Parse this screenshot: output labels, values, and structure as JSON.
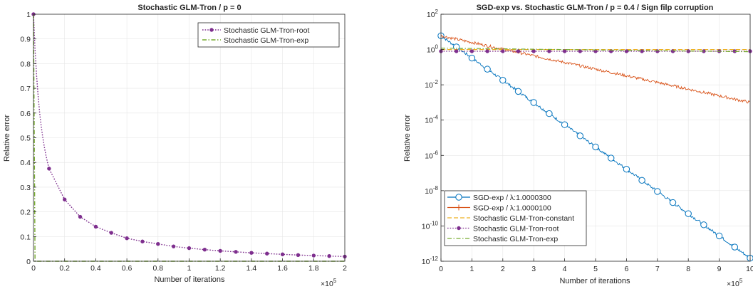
{
  "chart_data": [
    {
      "type": "line",
      "title": "Stochastic GLM-Tron / p = 0",
      "xlabel": "Number of iterations",
      "ylabel": "Relative error",
      "x_exponent_label": "×10",
      "x_exponent": "5",
      "xlim": [
        0,
        2
      ],
      "ylim": [
        0,
        1
      ],
      "xticks": [
        "0",
        "0.2",
        "0.4",
        "0.6",
        "0.8",
        "1",
        "1.2",
        "1.4",
        "1.6",
        "1.8",
        "2"
      ],
      "yticks": [
        "0",
        "0.1",
        "0.2",
        "0.3",
        "0.4",
        "0.5",
        "0.6",
        "0.7",
        "0.8",
        "0.9",
        "1"
      ],
      "grid": true,
      "legend_position": "top-right",
      "series": [
        {
          "name": "Stochastic GLM-Tron-root",
          "color": "#7e2f8e",
          "style": "dotted",
          "marker": "dot",
          "x": [
            0,
            0.1,
            0.2,
            0.3,
            0.4,
            0.5,
            0.6,
            0.7,
            0.8,
            0.9,
            1.0,
            1.1,
            1.2,
            1.3,
            1.4,
            1.5,
            1.6,
            1.7,
            1.8,
            1.9,
            2.0
          ],
          "values": [
            1.0,
            0.375,
            0.25,
            0.18,
            0.14,
            0.115,
            0.093,
            0.08,
            0.07,
            0.06,
            0.053,
            0.047,
            0.042,
            0.038,
            0.034,
            0.031,
            0.028,
            0.025,
            0.023,
            0.021,
            0.019
          ]
        },
        {
          "name": "Stochastic GLM-Tron-exp",
          "color": "#77ac30",
          "style": "dashdot",
          "marker": "none",
          "x": [
            0,
            0.005,
            0.01,
            0.02,
            2.0
          ],
          "values": [
            1.0,
            0.5,
            0.0,
            0.0,
            0.0
          ]
        }
      ]
    },
    {
      "type": "line",
      "title": "SGD-exp vs. Stochastic GLM-Tron / p = 0.4 / Sign filp corruption",
      "xlabel": "Number of iterations",
      "ylabel": "Relative error",
      "x_exponent_label": "×10",
      "x_exponent": "5",
      "xlim": [
        0,
        10
      ],
      "yscale": "log",
      "ylim": [
        1e-12,
        100
      ],
      "xticks": [
        "0",
        "1",
        "2",
        "3",
        "4",
        "5",
        "6",
        "7",
        "8",
        "9",
        "10"
      ],
      "yticks": [
        {
          "base": "10",
          "exp": "-12"
        },
        {
          "base": "10",
          "exp": "-10"
        },
        {
          "base": "10",
          "exp": "-8"
        },
        {
          "base": "10",
          "exp": "-6"
        },
        {
          "base": "10",
          "exp": "-4"
        },
        {
          "base": "10",
          "exp": "-2"
        },
        {
          "base": "10",
          "exp": "0"
        },
        {
          "base": "10",
          "exp": "2"
        }
      ],
      "grid": true,
      "legend_position": "bottom-left",
      "series": [
        {
          "name": "SGD-exp / λ:1.0000300",
          "color": "#0072bd",
          "style": "solid",
          "marker": "circle",
          "x": [
            0,
            10
          ],
          "values": [
            6,
            1.5e-12
          ]
        },
        {
          "name": "SGD-exp / λ:1.0000100",
          "color": "#d95319",
          "style": "solid",
          "marker": "plus",
          "x": [
            0,
            10
          ],
          "values": [
            6,
            0.001
          ]
        },
        {
          "name": "Stochastic GLM-Tron-constant",
          "color": "#edb120",
          "style": "dashed",
          "marker": "none",
          "x": [
            0,
            10
          ],
          "values": [
            1.0,
            1.0
          ]
        },
        {
          "name": "Stochastic GLM-Tron-root",
          "color": "#7e2f8e",
          "style": "dotted",
          "marker": "dot",
          "x": [
            0,
            1,
            2,
            3,
            4,
            5,
            6,
            7,
            8,
            9,
            10
          ],
          "values": [
            0.8,
            0.8,
            0.8,
            0.8,
            0.8,
            0.8,
            0.8,
            0.8,
            0.8,
            0.8,
            0.8
          ]
        },
        {
          "name": "Stochastic GLM-Tron-exp",
          "color": "#77ac30",
          "style": "dashdot",
          "marker": "none",
          "x": [
            0,
            10
          ],
          "values": [
            1.2,
            0.75
          ]
        }
      ]
    }
  ]
}
